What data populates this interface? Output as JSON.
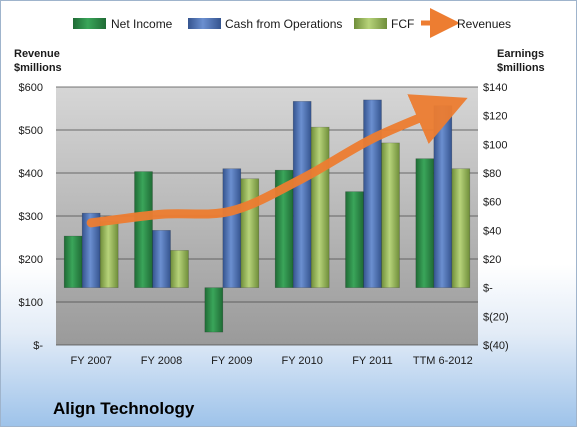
{
  "chart_data": {
    "type": "bar",
    "title": "",
    "categories": [
      "FY 2007",
      "FY 2008",
      "FY 2009",
      "FY 2010",
      "FY 2011",
      "TTM 6-2012"
    ],
    "series": [
      {
        "name": "Net Income",
        "axis": "right",
        "kind": "bar",
        "color": "#2e8b4a",
        "values": [
          36,
          81,
          -31,
          82,
          67,
          90
        ]
      },
      {
        "name": "Cash from Operations",
        "axis": "right",
        "kind": "bar",
        "color": "#4f74b8",
        "values": [
          52,
          40,
          83,
          130,
          131,
          127
        ]
      },
      {
        "name": "FCF",
        "axis": "right",
        "kind": "bar",
        "color": "#9bbb59",
        "values": [
          46,
          26,
          76,
          112,
          101,
          83
        ]
      },
      {
        "name": "Revenues",
        "axis": "left",
        "kind": "line",
        "color": "#ed7d31",
        "values": [
          284,
          304,
          312,
          387,
          480,
          550
        ]
      }
    ],
    "left_axis": {
      "label_line1": "Revenue",
      "label_line2": "$millions",
      "range": [
        0,
        600
      ],
      "ticks": [
        0,
        100,
        200,
        300,
        400,
        500,
        600
      ],
      "tick_labels": [
        "$-",
        "$100",
        "$200",
        "$300",
        "$400",
        "$500",
        "$600"
      ]
    },
    "right_axis": {
      "label_line1": "Earnings",
      "label_line2": "$millions",
      "range": [
        -40,
        140
      ],
      "ticks": [
        -40,
        -20,
        0,
        20,
        40,
        60,
        80,
        100,
        120,
        140
      ],
      "tick_labels": [
        "$(40)",
        "$(20)",
        "$-",
        "$20",
        "$40",
        "$60",
        "$80",
        "$100",
        "$120",
        "$140"
      ]
    },
    "grid": true,
    "legend_position": "top"
  },
  "company_name": "Align Technology"
}
